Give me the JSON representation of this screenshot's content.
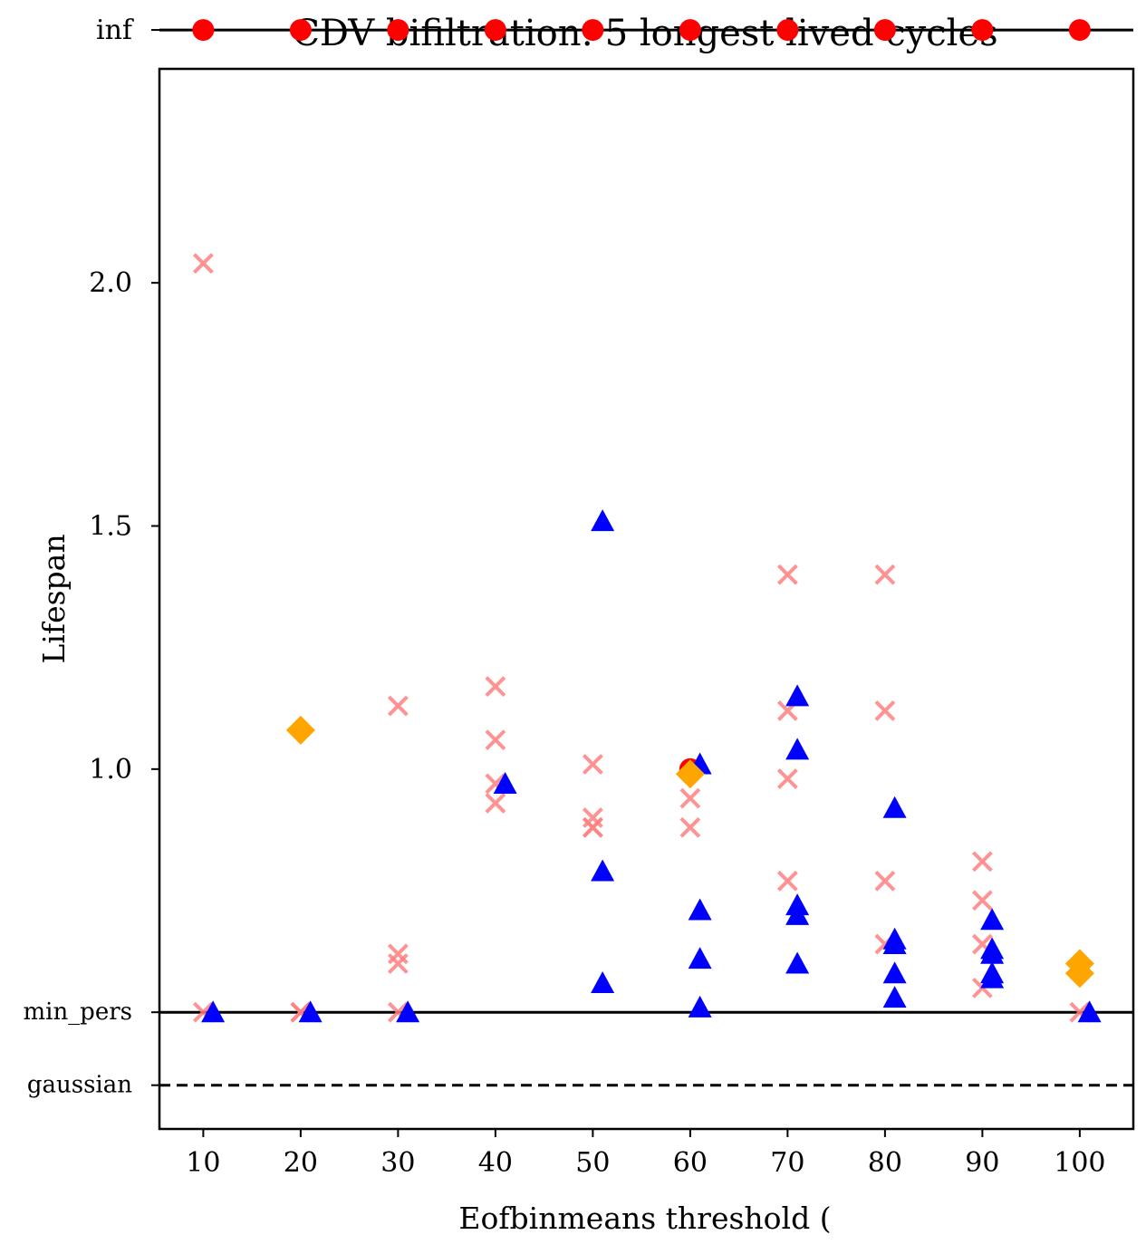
{
  "chart_data": {
    "type": "scatter",
    "title": "CDV bifiltration: 5 longest lived cycles",
    "xlabel": "Eofbinmeans threshold (",
    "ylabel": "Lifespan",
    "xlim": [
      5.5,
      105.5
    ],
    "ylim": [
      0.26,
      2.44
    ],
    "x_ticks": [
      10,
      20,
      30,
      40,
      50,
      60,
      70,
      80,
      90,
      100
    ],
    "x_tick_labels": [
      "10",
      "20",
      "30",
      "40",
      "50",
      "60",
      "70",
      "80",
      "90",
      "100"
    ],
    "y_ticks": [
      1.0,
      1.5,
      2.0
    ],
    "y_tick_labels": [
      "1.0",
      "1.5",
      "2.0"
    ],
    "reference_lines": [
      {
        "name": "inf",
        "label": "inf",
        "y": 2.52,
        "style": "solid"
      },
      {
        "name": "min_pers",
        "label": "min_pers",
        "y": 0.5,
        "style": "solid"
      },
      {
        "name": "gaussian",
        "label": "gaussian",
        "y": 0.35,
        "style": "dashed"
      }
    ],
    "series": [
      {
        "name": "infinite",
        "marker": "circle",
        "color": "#ff0000",
        "points": [
          [
            10,
            2.52
          ],
          [
            20,
            2.52
          ],
          [
            30,
            2.52
          ],
          [
            40,
            2.52
          ],
          [
            50,
            2.52
          ],
          [
            60,
            2.52
          ],
          [
            70,
            2.52
          ],
          [
            80,
            2.52
          ],
          [
            90,
            2.52
          ],
          [
            100,
            2.52
          ],
          [
            60,
            1.0
          ]
        ]
      },
      {
        "name": "crosses",
        "marker": "x",
        "color": "#ff8080",
        "points": [
          [
            10,
            2.04
          ],
          [
            10,
            0.5
          ],
          [
            20,
            0.5
          ],
          [
            20,
            0.5
          ],
          [
            30,
            1.13
          ],
          [
            30,
            0.62
          ],
          [
            30,
            0.6
          ],
          [
            30,
            0.5
          ],
          [
            40,
            1.17
          ],
          [
            40,
            1.06
          ],
          [
            40,
            0.97
          ],
          [
            40,
            0.93
          ],
          [
            50,
            1.01
          ],
          [
            50,
            0.9
          ],
          [
            50,
            0.88
          ],
          [
            50,
            0.88
          ],
          [
            60,
            0.94
          ],
          [
            60,
            0.88
          ],
          [
            70,
            1.4
          ],
          [
            70,
            1.12
          ],
          [
            70,
            0.98
          ],
          [
            70,
            0.77
          ],
          [
            80,
            1.4
          ],
          [
            80,
            1.12
          ],
          [
            80,
            0.77
          ],
          [
            80,
            0.64
          ],
          [
            90,
            0.81
          ],
          [
            90,
            0.73
          ],
          [
            90,
            0.64
          ],
          [
            90,
            0.55
          ],
          [
            100,
            0.5
          ]
        ]
      },
      {
        "name": "triangles",
        "marker": "triangle",
        "color": "#0000ff",
        "points": [
          [
            11,
            0.5
          ],
          [
            21,
            0.5
          ],
          [
            31,
            0.5
          ],
          [
            41,
            0.97
          ],
          [
            51,
            1.51
          ],
          [
            51,
            0.79
          ],
          [
            51,
            0.56
          ],
          [
            61,
            1.01
          ],
          [
            61,
            0.71
          ],
          [
            61,
            0.61
          ],
          [
            61,
            0.51
          ],
          [
            71,
            1.15
          ],
          [
            71,
            1.04
          ],
          [
            71,
            0.72
          ],
          [
            71,
            0.7
          ],
          [
            71,
            0.6
          ],
          [
            81,
            0.92
          ],
          [
            81,
            0.65
          ],
          [
            81,
            0.64
          ],
          [
            81,
            0.58
          ],
          [
            81,
            0.53
          ],
          [
            91,
            0.69
          ],
          [
            91,
            0.63
          ],
          [
            91,
            0.62
          ],
          [
            91,
            0.58
          ],
          [
            91,
            0.57
          ],
          [
            101,
            0.5
          ]
        ]
      },
      {
        "name": "diamonds",
        "marker": "diamond",
        "color": "#ffa500",
        "points": [
          [
            20,
            1.08
          ],
          [
            60,
            0.99
          ],
          [
            100,
            0.6
          ],
          [
            100,
            0.58
          ]
        ]
      }
    ]
  }
}
